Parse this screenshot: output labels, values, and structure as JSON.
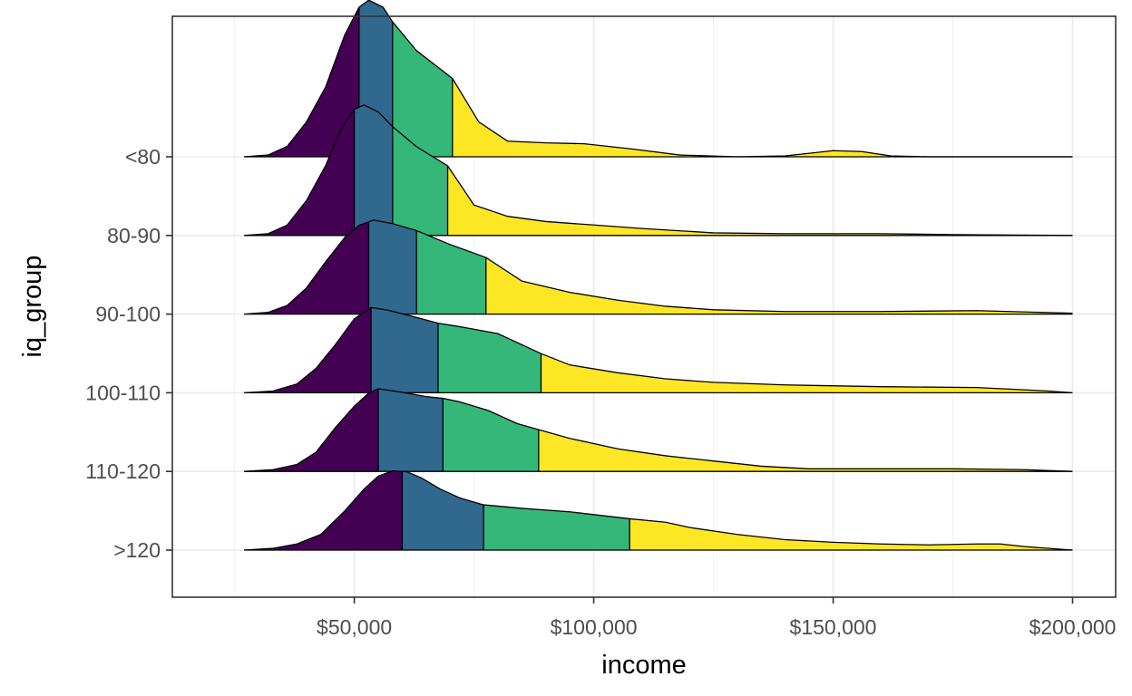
{
  "chart_data": {
    "type": "ridgeline",
    "xlabel": "income",
    "ylabel": "iq_group",
    "xlim": [
      12000,
      209000
    ],
    "x_ticks": [
      50000,
      100000,
      150000,
      200000
    ],
    "x_tick_labels": [
      "$50,000",
      "$100,000",
      "$150,000",
      "$200,000"
    ],
    "quantile_fill_colors": [
      "#440154",
      "#31688e",
      "#35b779",
      "#fde725"
    ],
    "grid": true,
    "groups": [
      {
        "name": ">120",
        "quantiles": [
          60000,
          77000,
          107500
        ],
        "density": [
          [
            27000,
            0
          ],
          [
            33000,
            0.02
          ],
          [
            38000,
            0.07
          ],
          [
            43000,
            0.18
          ],
          [
            48000,
            0.45
          ],
          [
            52000,
            0.7
          ],
          [
            55000,
            0.85
          ],
          [
            58000,
            0.91
          ],
          [
            61000,
            0.9
          ],
          [
            64000,
            0.83
          ],
          [
            68000,
            0.7
          ],
          [
            72000,
            0.6
          ],
          [
            77000,
            0.52
          ],
          [
            85000,
            0.48
          ],
          [
            95000,
            0.44
          ],
          [
            107500,
            0.36
          ],
          [
            115000,
            0.32
          ],
          [
            120000,
            0.26
          ],
          [
            130000,
            0.18
          ],
          [
            140000,
            0.12
          ],
          [
            150000,
            0.09
          ],
          [
            160000,
            0.07
          ],
          [
            170000,
            0.06
          ],
          [
            180000,
            0.07
          ],
          [
            185000,
            0.07
          ],
          [
            190000,
            0.04
          ],
          [
            200000,
            0
          ]
        ]
      },
      {
        "name": "110-120",
        "quantiles": [
          55000,
          68500,
          88500
        ],
        "density": [
          [
            27000,
            0
          ],
          [
            33000,
            0.02
          ],
          [
            38000,
            0.08
          ],
          [
            42000,
            0.22
          ],
          [
            46000,
            0.5
          ],
          [
            50000,
            0.75
          ],
          [
            53000,
            0.9
          ],
          [
            55000,
            0.95
          ],
          [
            60000,
            0.91
          ],
          [
            65000,
            0.86
          ],
          [
            68500,
            0.84
          ],
          [
            72000,
            0.8
          ],
          [
            78000,
            0.7
          ],
          [
            84000,
            0.55
          ],
          [
            88500,
            0.48
          ],
          [
            95000,
            0.38
          ],
          [
            105000,
            0.26
          ],
          [
            115000,
            0.18
          ],
          [
            125000,
            0.12
          ],
          [
            135000,
            0.06
          ],
          [
            145000,
            0.03
          ],
          [
            160000,
            0.03
          ],
          [
            175000,
            0.03
          ],
          [
            190000,
            0.02
          ],
          [
            200000,
            0
          ]
        ]
      },
      {
        "name": "100-110",
        "quantiles": [
          53500,
          67500,
          89000
        ],
        "density": [
          [
            27000,
            0
          ],
          [
            33000,
            0.02
          ],
          [
            38000,
            0.1
          ],
          [
            42000,
            0.28
          ],
          [
            46000,
            0.55
          ],
          [
            50000,
            0.85
          ],
          [
            53500,
            0.98
          ],
          [
            57000,
            0.95
          ],
          [
            62000,
            0.88
          ],
          [
            67500,
            0.8
          ],
          [
            72000,
            0.76
          ],
          [
            80000,
            0.68
          ],
          [
            89000,
            0.45
          ],
          [
            95000,
            0.32
          ],
          [
            105000,
            0.23
          ],
          [
            115000,
            0.16
          ],
          [
            125000,
            0.12
          ],
          [
            140000,
            0.09
          ],
          [
            160000,
            0.07
          ],
          [
            180000,
            0.06
          ],
          [
            195000,
            0.02
          ],
          [
            200000,
            0
          ]
        ]
      },
      {
        "name": "90-100",
        "quantiles": [
          53000,
          63000,
          77500
        ],
        "density": [
          [
            27000,
            0
          ],
          [
            32000,
            0.02
          ],
          [
            36000,
            0.1
          ],
          [
            40000,
            0.3
          ],
          [
            44000,
            0.6
          ],
          [
            48000,
            0.88
          ],
          [
            51000,
            1.02
          ],
          [
            54000,
            1.08
          ],
          [
            58000,
            1.04
          ],
          [
            63000,
            0.96
          ],
          [
            70000,
            0.8
          ],
          [
            77500,
            0.65
          ],
          [
            85000,
            0.38
          ],
          [
            95000,
            0.25
          ],
          [
            105000,
            0.16
          ],
          [
            115000,
            0.09
          ],
          [
            125000,
            0.05
          ],
          [
            140000,
            0.03
          ],
          [
            160000,
            0.03
          ],
          [
            180000,
            0.04
          ],
          [
            200000,
            0.01
          ]
        ]
      },
      {
        "name": "80-90",
        "quantiles": [
          50000,
          58000,
          69500
        ],
        "density": [
          [
            27000,
            0
          ],
          [
            32000,
            0.02
          ],
          [
            36000,
            0.12
          ],
          [
            40000,
            0.4
          ],
          [
            44000,
            0.8
          ],
          [
            47000,
            1.2
          ],
          [
            50000,
            1.45
          ],
          [
            52000,
            1.5
          ],
          [
            55000,
            1.42
          ],
          [
            58000,
            1.25
          ],
          [
            63000,
            1.02
          ],
          [
            69500,
            0.8
          ],
          [
            75000,
            0.35
          ],
          [
            82000,
            0.22
          ],
          [
            90000,
            0.16
          ],
          [
            100000,
            0.12
          ],
          [
            110000,
            0.08
          ],
          [
            125000,
            0.03
          ],
          [
            140000,
            0.02
          ],
          [
            160000,
            0.02
          ],
          [
            175000,
            0.01
          ],
          [
            200000,
            0
          ]
        ]
      },
      {
        "name": "<80",
        "quantiles": [
          51000,
          58000,
          70500
        ],
        "density": [
          [
            27000,
            0
          ],
          [
            32000,
            0.02
          ],
          [
            36000,
            0.12
          ],
          [
            40000,
            0.4
          ],
          [
            44000,
            0.8
          ],
          [
            48000,
            1.4
          ],
          [
            51000,
            1.72
          ],
          [
            53000,
            1.8
          ],
          [
            56000,
            1.72
          ],
          [
            58000,
            1.55
          ],
          [
            63000,
            1.22
          ],
          [
            70500,
            0.9
          ],
          [
            76000,
            0.4
          ],
          [
            82000,
            0.18
          ],
          [
            90000,
            0.16
          ],
          [
            98000,
            0.15
          ],
          [
            108000,
            0.09
          ],
          [
            118000,
            0.02
          ],
          [
            130000,
            0
          ],
          [
            140000,
            0.01
          ],
          [
            150000,
            0.07
          ],
          [
            156000,
            0.06
          ],
          [
            162000,
            0.01
          ],
          [
            170000,
            0
          ],
          [
            200000,
            0
          ]
        ]
      }
    ]
  }
}
